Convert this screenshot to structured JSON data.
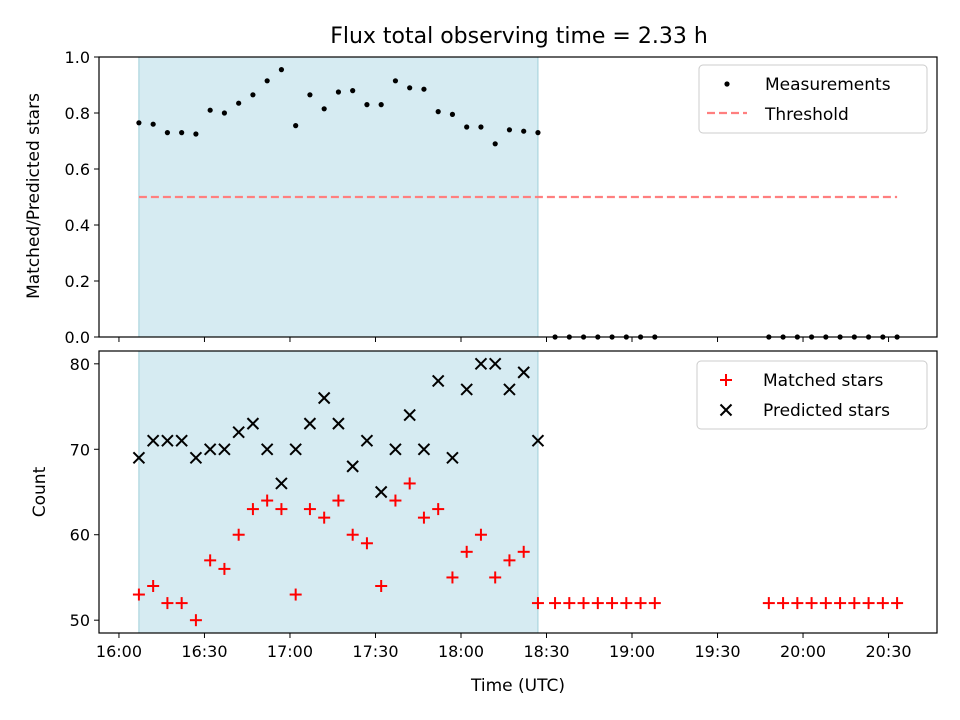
{
  "title": "Flux total observing time = 2.33 h",
  "chart_data": [
    {
      "type": "scatter",
      "ylabel": "Matched/Predicted stars",
      "ylim": [
        0,
        1
      ],
      "yticks": [
        "0.0",
        "0.2",
        "0.4",
        "0.6",
        "0.8",
        "1.0"
      ],
      "shaded_span": [
        "16:07",
        "18:27"
      ],
      "legend_position": "top-right",
      "series": [
        {
          "name": "Measurements",
          "marker": "dot",
          "color": "#000000",
          "points": [
            [
              "16:07",
              0.765
            ],
            [
              "16:12",
              0.76
            ],
            [
              "16:17",
              0.73
            ],
            [
              "16:22",
              0.73
            ],
            [
              "16:27",
              0.725
            ],
            [
              "16:32",
              0.81
            ],
            [
              "16:37",
              0.8
            ],
            [
              "16:42",
              0.835
            ],
            [
              "16:47",
              0.865
            ],
            [
              "16:52",
              0.915
            ],
            [
              "16:57",
              0.955
            ],
            [
              "17:02",
              0.755
            ],
            [
              "17:07",
              0.865
            ],
            [
              "17:12",
              0.815
            ],
            [
              "17:17",
              0.875
            ],
            [
              "17:22",
              0.88
            ],
            [
              "17:27",
              0.83
            ],
            [
              "17:32",
              0.83
            ],
            [
              "17:37",
              0.915
            ],
            [
              "17:42",
              0.89
            ],
            [
              "17:47",
              0.885
            ],
            [
              "17:52",
              0.805
            ],
            [
              "17:57",
              0.795
            ],
            [
              "18:02",
              0.75
            ],
            [
              "18:07",
              0.75
            ],
            [
              "18:12",
              0.69
            ],
            [
              "18:17",
              0.74
            ],
            [
              "18:22",
              0.735
            ],
            [
              "18:27",
              0.73
            ],
            [
              "18:33",
              0
            ],
            [
              "18:38",
              0
            ],
            [
              "18:43",
              0
            ],
            [
              "18:48",
              0
            ],
            [
              "18:53",
              0
            ],
            [
              "18:58",
              0
            ],
            [
              "19:03",
              0
            ],
            [
              "19:08",
              0
            ],
            [
              "19:48",
              0
            ],
            [
              "19:53",
              0
            ],
            [
              "19:58",
              0
            ],
            [
              "20:03",
              0
            ],
            [
              "20:08",
              0
            ],
            [
              "20:13",
              0
            ],
            [
              "20:18",
              0
            ],
            [
              "20:23",
              0
            ],
            [
              "20:28",
              0
            ],
            [
              "20:33",
              0
            ]
          ]
        },
        {
          "name": "Threshold",
          "style": "dashed-line",
          "color": "#ff7f7f",
          "points": [
            [
              "16:07",
              0.5
            ],
            [
              "20:33",
              0.5
            ]
          ]
        }
      ]
    },
    {
      "type": "scatter",
      "xlabel": "Time (UTC)",
      "ylabel": "Count",
      "ylim": [
        48.5,
        81.5
      ],
      "yticks": [
        "50",
        "60",
        "70",
        "80"
      ],
      "xlim": [
        "15:53",
        "20:47"
      ],
      "xticks": [
        "16:00",
        "16:30",
        "17:00",
        "17:30",
        "18:00",
        "18:30",
        "19:00",
        "19:30",
        "20:00",
        "20:30"
      ],
      "shaded_span": [
        "16:07",
        "18:27"
      ],
      "legend_position": "top-right",
      "series": [
        {
          "name": "Matched stars",
          "marker": "plus",
          "color": "#ff0000",
          "points": [
            [
              "16:07",
              53
            ],
            [
              "16:12",
              54
            ],
            [
              "16:17",
              52
            ],
            [
              "16:22",
              52
            ],
            [
              "16:27",
              50
            ],
            [
              "16:32",
              57
            ],
            [
              "16:37",
              56
            ],
            [
              "16:42",
              60
            ],
            [
              "16:47",
              63
            ],
            [
              "16:52",
              64
            ],
            [
              "16:57",
              63
            ],
            [
              "17:02",
              53
            ],
            [
              "17:07",
              63
            ],
            [
              "17:12",
              62
            ],
            [
              "17:17",
              64
            ],
            [
              "17:22",
              60
            ],
            [
              "17:27",
              59
            ],
            [
              "17:32",
              54
            ],
            [
              "17:37",
              64
            ],
            [
              "17:42",
              66
            ],
            [
              "17:47",
              62
            ],
            [
              "17:52",
              63
            ],
            [
              "17:57",
              55
            ],
            [
              "18:02",
              58
            ],
            [
              "18:07",
              60
            ],
            [
              "18:12",
              55
            ],
            [
              "18:17",
              57
            ],
            [
              "18:22",
              58
            ],
            [
              "18:27",
              52
            ],
            [
              "18:33",
              52
            ],
            [
              "18:38",
              52
            ],
            [
              "18:43",
              52
            ],
            [
              "18:48",
              52
            ],
            [
              "18:53",
              52
            ],
            [
              "18:58",
              52
            ],
            [
              "19:03",
              52
            ],
            [
              "19:08",
              52
            ],
            [
              "19:48",
              52
            ],
            [
              "19:53",
              52
            ],
            [
              "19:58",
              52
            ],
            [
              "20:03",
              52
            ],
            [
              "20:08",
              52
            ],
            [
              "20:13",
              52
            ],
            [
              "20:18",
              52
            ],
            [
              "20:23",
              52
            ],
            [
              "20:28",
              52
            ],
            [
              "20:33",
              52
            ]
          ]
        },
        {
          "name": "Predicted stars",
          "marker": "x",
          "color": "#000000",
          "points": [
            [
              "16:07",
              69
            ],
            [
              "16:12",
              71
            ],
            [
              "16:17",
              71
            ],
            [
              "16:22",
              71
            ],
            [
              "16:27",
              69
            ],
            [
              "16:32",
              70
            ],
            [
              "16:37",
              70
            ],
            [
              "16:42",
              72
            ],
            [
              "16:47",
              73
            ],
            [
              "16:52",
              70
            ],
            [
              "16:57",
              66
            ],
            [
              "17:02",
              70
            ],
            [
              "17:07",
              73
            ],
            [
              "17:12",
              76
            ],
            [
              "17:17",
              73
            ],
            [
              "17:22",
              68
            ],
            [
              "17:27",
              71
            ],
            [
              "17:32",
              65
            ],
            [
              "17:37",
              70
            ],
            [
              "17:42",
              74
            ],
            [
              "17:47",
              70
            ],
            [
              "17:52",
              78
            ],
            [
              "17:57",
              69
            ],
            [
              "18:02",
              77
            ],
            [
              "18:07",
              80
            ],
            [
              "18:12",
              80
            ],
            [
              "18:17",
              77
            ],
            [
              "18:22",
              79
            ],
            [
              "18:27",
              71
            ]
          ]
        }
      ]
    }
  ]
}
